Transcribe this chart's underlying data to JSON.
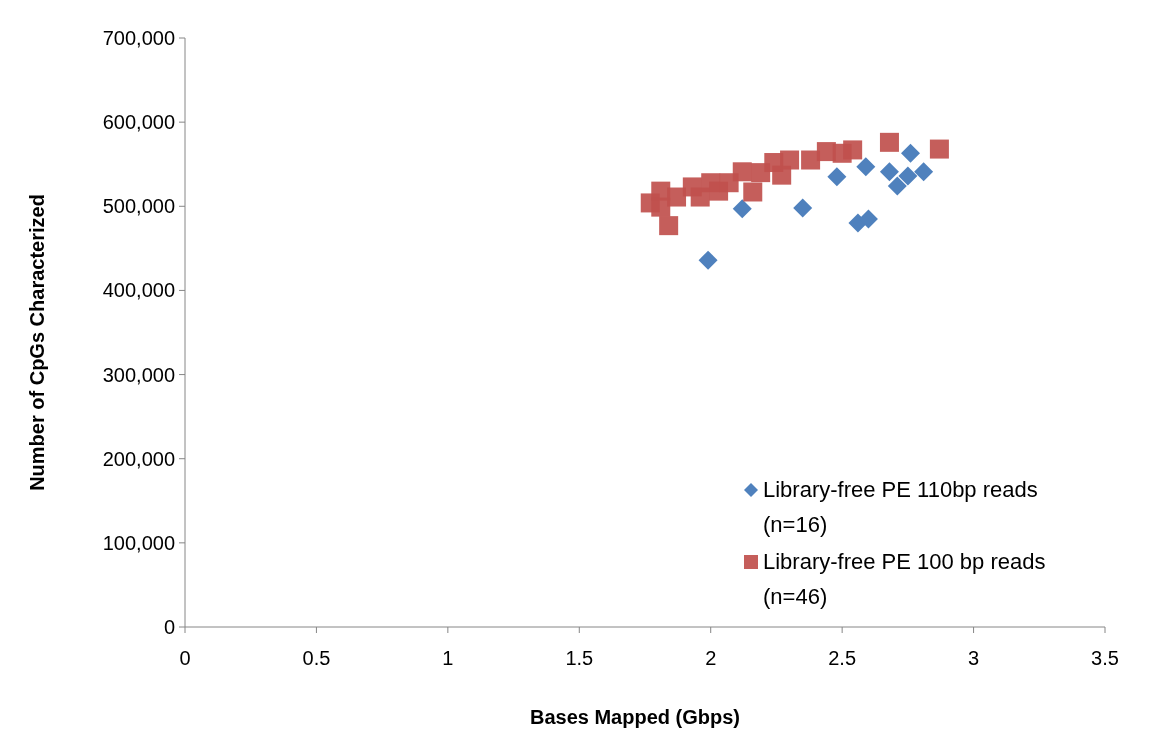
{
  "chart_data": {
    "type": "scatter",
    "xlabel": "Bases Mapped (Gbps)",
    "ylabel": "Number of CpGs Characterized",
    "xlim": [
      0,
      3.5
    ],
    "xticks": [
      0,
      0.5,
      1,
      1.5,
      2,
      2.5,
      3,
      3.5
    ],
    "ylim": [
      0,
      700000
    ],
    "yticks": [
      {
        "value": 0,
        "label": "0"
      },
      {
        "value": 100000,
        "label": "100,000"
      },
      {
        "value": 200000,
        "label": "200,000"
      },
      {
        "value": 300000,
        "label": "300,000"
      },
      {
        "value": 400000,
        "label": "400,000"
      },
      {
        "value": 500000,
        "label": "500,000"
      },
      {
        "value": 600000,
        "label": "600,000"
      },
      {
        "value": 700000,
        "label": "700,000"
      }
    ],
    "grid": false,
    "legend": "bottom right",
    "series": [
      {
        "name": "Library-free PE 110bp reads (n=16)",
        "color": "#4f81bd",
        "marker": "diamond",
        "x": [
          1.99,
          2.12,
          2.35,
          2.48,
          2.56,
          2.6,
          2.59,
          2.68,
          2.71,
          2.75,
          2.76,
          2.81
        ],
        "values": [
          436000,
          497000,
          498000,
          535000,
          480000,
          485000,
          547000,
          541000,
          524000,
          536000,
          563000,
          541000
        ]
      },
      {
        "name": "Library-free PE 100 bp reads (n=46)",
        "color": "#c0504d",
        "marker": "square",
        "x": [
          1.77,
          1.81,
          1.81,
          1.84,
          1.87,
          1.93,
          1.96,
          2.0,
          2.03,
          2.07,
          2.12,
          2.16,
          2.19,
          2.24,
          2.27,
          2.3,
          2.38,
          2.44,
          2.5,
          2.54,
          2.68,
          2.87
        ],
        "values": [
          504000,
          518000,
          499000,
          477000,
          511000,
          523000,
          511000,
          528000,
          518000,
          528000,
          541000,
          517000,
          540000,
          552000,
          537000,
          555000,
          555000,
          565000,
          563000,
          567000,
          576000,
          568000
        ]
      }
    ]
  }
}
